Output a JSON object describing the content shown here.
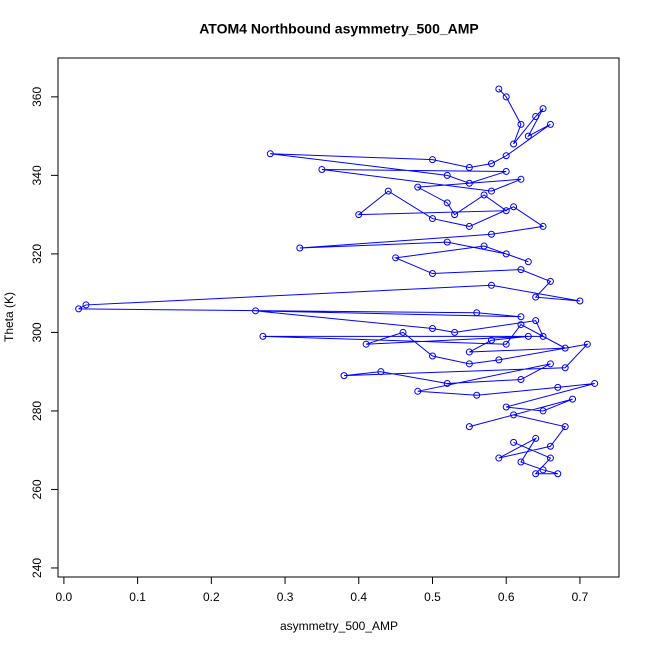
{
  "chart_data": {
    "type": "scatter",
    "title": "ATOM4 Northbound asymmetry_500_AMP",
    "x_label": "asymmetry_500_AMP",
    "y_label": "Theta (K)",
    "color": "#0000ff",
    "connect": true,
    "xlim": [
      -0.008,
      0.753
    ],
    "ylim": [
      237.7,
      369.9
    ],
    "xticks": [
      {
        "value": 0,
        "label": "0.0"
      },
      0.1,
      0.2,
      0.3,
      0.4,
      0.5,
      0.6,
      0.7
    ],
    "yticks": [
      240,
      260,
      280,
      300,
      320,
      340,
      360
    ],
    "x": [
      0.59,
      0.6,
      0.62,
      0.61,
      0.64,
      0.65,
      0.63,
      0.66,
      0.6,
      0.58,
      0.55,
      0.5,
      0.28,
      0.52,
      0.55,
      0.6,
      0.35,
      0.58,
      0.62,
      0.48,
      0.52,
      0.53,
      0.57,
      0.6,
      0.4,
      0.44,
      0.5,
      0.55,
      0.61,
      0.65,
      0.58,
      0.32,
      0.52,
      0.6,
      0.63,
      0.57,
      0.45,
      0.5,
      0.62,
      0.66,
      0.64,
      0.7,
      0.58,
      0.03,
      0.02,
      0.56,
      0.62,
      0.26,
      0.5,
      0.53,
      0.64,
      0.65,
      0.27,
      0.6,
      0.62,
      0.68,
      0.55,
      0.58,
      0.63,
      0.41,
      0.46,
      0.5,
      0.55,
      0.59,
      0.71,
      0.68,
      0.38,
      0.43,
      0.52,
      0.62,
      0.66,
      0.48,
      0.56,
      0.67,
      0.72,
      0.6,
      0.65,
      0.69,
      0.55,
      0.61,
      0.68,
      0.66,
      0.59,
      0.64,
      0.62,
      0.65,
      0.67,
      0.64,
      0.66,
      0.61
    ],
    "y": [
      362,
      360,
      353,
      348,
      355,
      357,
      350,
      353,
      345,
      343,
      342,
      344,
      345.5,
      340,
      338,
      341,
      341.5,
      336,
      339,
      337,
      333,
      330,
      335,
      331,
      330,
      336,
      329,
      327,
      332,
      327,
      325,
      321.5,
      323,
      320,
      318,
      322,
      319,
      315,
      316,
      313,
      309,
      308,
      312,
      307,
      306,
      305,
      304,
      305.5,
      301,
      300,
      303,
      299,
      299,
      297,
      302,
      296,
      295,
      298,
      299,
      297,
      300,
      294,
      292,
      293,
      297,
      291,
      289,
      290,
      287,
      288,
      292,
      285,
      284,
      286,
      287,
      281,
      280,
      283,
      276,
      279,
      276,
      271,
      268,
      273,
      267,
      265,
      264,
      264,
      268,
      272
    ]
  }
}
